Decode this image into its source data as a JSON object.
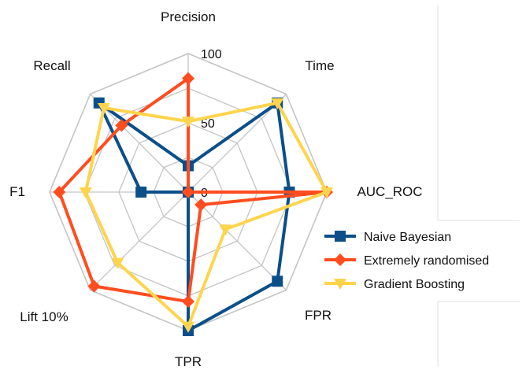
{
  "chart_data": {
    "type": "radar",
    "axes": [
      "Precision",
      "Time",
      "AUC_ROC",
      "FPR",
      "TPR",
      "Lift 10%",
      "F1",
      "Recall"
    ],
    "ticks": [
      0,
      50,
      100
    ],
    "range": [
      0,
      100
    ],
    "grid": true,
    "legend_position": "right",
    "series": [
      {
        "name": "Naive Bayesian",
        "color": "#0b4f8a",
        "marker": "square",
        "values": [
          19,
          91,
          73,
          91,
          100,
          0,
          34,
          91
        ]
      },
      {
        "name": "Extremely randomised",
        "color": "#ff4d1f",
        "marker": "diamond",
        "values": [
          82,
          0,
          100,
          13,
          79,
          96,
          93,
          68
        ]
      },
      {
        "name": "Gradient Boosting",
        "color": "#ffd44d",
        "marker": "triangle",
        "values": [
          51,
          91,
          100,
          38,
          97,
          72,
          74,
          86
        ]
      }
    ]
  }
}
